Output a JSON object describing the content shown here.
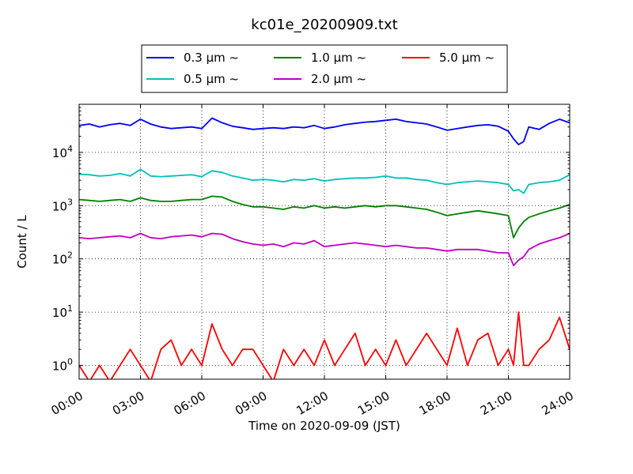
{
  "chart_data": {
    "type": "line",
    "title": "kc01e_20200909.txt",
    "xlabel": "Time on 2020-09-09 (JST)",
    "ylabel": "Count / L",
    "xlim": [
      "00:00",
      "24:00"
    ],
    "ylim": [
      0.55,
      80000
    ],
    "yscale": "log",
    "grid": true,
    "legend_position": "top-center",
    "x_ticks": [
      "00:00",
      "03:00",
      "06:00",
      "09:00",
      "12:00",
      "15:00",
      "18:00",
      "21:00",
      "24:00"
    ],
    "y_ticks": [
      {
        "base": "10",
        "exp": "0",
        "value": 1
      },
      {
        "base": "10",
        "exp": "1",
        "value": 10
      },
      {
        "base": "10",
        "exp": "2",
        "value": 100
      },
      {
        "base": "10",
        "exp": "3",
        "value": 1000
      },
      {
        "base": "10",
        "exp": "4",
        "value": 10000
      }
    ],
    "x": [
      "00:00",
      "00:30",
      "01:00",
      "01:30",
      "02:00",
      "02:30",
      "03:00",
      "03:30",
      "04:00",
      "04:30",
      "05:00",
      "05:30",
      "06:00",
      "06:30",
      "07:00",
      "07:30",
      "08:00",
      "08:30",
      "09:00",
      "09:30",
      "10:00",
      "10:30",
      "11:00",
      "11:30",
      "12:00",
      "12:30",
      "13:00",
      "13:30",
      "14:00",
      "14:30",
      "15:00",
      "15:30",
      "16:00",
      "16:30",
      "17:00",
      "17:30",
      "18:00",
      "18:30",
      "19:00",
      "19:30",
      "20:00",
      "20:30",
      "21:00",
      "21:15",
      "21:30",
      "21:45",
      "22:00",
      "22:30",
      "23:00",
      "23:30",
      "24:00"
    ],
    "series": [
      {
        "name": "0.3 μm ~",
        "color": "#0000ff",
        "values": [
          32000,
          34000,
          30000,
          33000,
          35000,
          32000,
          42000,
          34000,
          30000,
          28000,
          29000,
          30000,
          28000,
          44000,
          36000,
          31000,
          29000,
          27000,
          28000,
          29000,
          28000,
          30000,
          29000,
          32000,
          28000,
          30000,
          33000,
          35000,
          37000,
          38000,
          40000,
          42000,
          38000,
          36000,
          34000,
          30000,
          26000,
          28000,
          30000,
          32000,
          33000,
          31000,
          25000,
          18000,
          14000,
          16000,
          30000,
          27000,
          35000,
          42000,
          36000
        ]
      },
      {
        "name": "0.5 μm ~",
        "color": "#00bfbf",
        "values": [
          3900,
          3800,
          3600,
          3700,
          4000,
          3600,
          4800,
          3600,
          3500,
          3600,
          3700,
          3800,
          3500,
          4500,
          4200,
          3600,
          3300,
          3000,
          3100,
          3000,
          2800,
          3100,
          3000,
          3200,
          2900,
          3100,
          3200,
          3300,
          3300,
          3400,
          3600,
          3300,
          3300,
          3100,
          3000,
          2700,
          2500,
          2700,
          2800,
          2900,
          2800,
          2700,
          2500,
          1900,
          2000,
          1700,
          2500,
          2700,
          2800,
          3000,
          3800
        ]
      },
      {
        "name": "1.0 μm ~",
        "color": "#008000",
        "values": [
          1300,
          1250,
          1200,
          1250,
          1300,
          1200,
          1400,
          1250,
          1200,
          1200,
          1250,
          1300,
          1300,
          1500,
          1450,
          1200,
          1050,
          950,
          950,
          900,
          850,
          950,
          900,
          1000,
          900,
          950,
          900,
          950,
          1000,
          950,
          1000,
          1000,
          950,
          900,
          850,
          750,
          650,
          700,
          750,
          800,
          750,
          700,
          650,
          250,
          380,
          500,
          600,
          700,
          800,
          900,
          1050
        ]
      },
      {
        "name": "2.0 μm ~",
        "color": "#bf00bf",
        "values": [
          250,
          240,
          250,
          260,
          270,
          250,
          300,
          250,
          240,
          260,
          270,
          280,
          260,
          300,
          290,
          240,
          210,
          190,
          180,
          190,
          170,
          200,
          190,
          220,
          170,
          180,
          190,
          200,
          190,
          180,
          170,
          180,
          170,
          160,
          160,
          150,
          140,
          150,
          150,
          150,
          140,
          130,
          130,
          75,
          95,
          110,
          150,
          190,
          220,
          250,
          300
        ]
      },
      {
        "name": "5.0 μm ~",
        "color": "#ff0000",
        "values": [
          1,
          0.5,
          1,
          0.5,
          1,
          2,
          1,
          0.5,
          2,
          3,
          1,
          2,
          1,
          6,
          2,
          1,
          2,
          2,
          1,
          0.5,
          2,
          1,
          2,
          1,
          3,
          1,
          2,
          4,
          1,
          2,
          1,
          3,
          1,
          2,
          4,
          2,
          1,
          5,
          1,
          3,
          4,
          1,
          2,
          1,
          10,
          1,
          1,
          2,
          3,
          8,
          2
        ]
      }
    ]
  }
}
